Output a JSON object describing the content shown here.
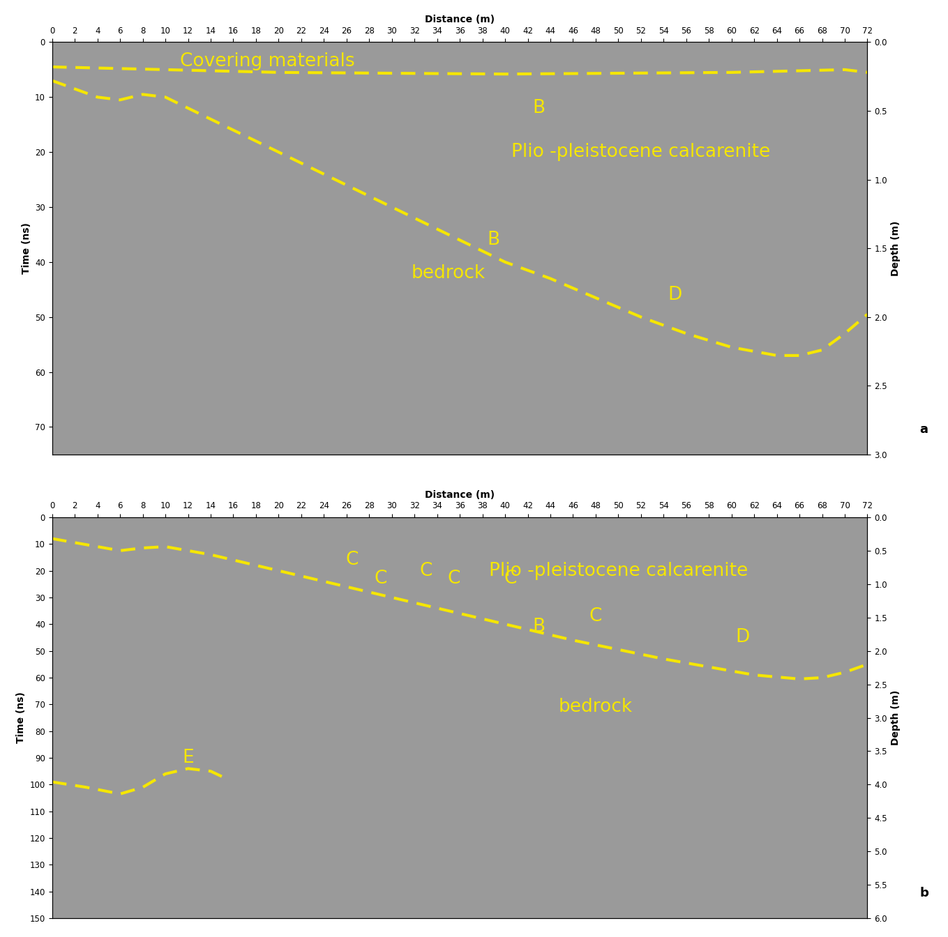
{
  "chart_data": [
    {
      "type": "line",
      "panel_label": "a",
      "x_label": "Distance (m)",
      "y_label": "Time (ns)",
      "y2_label": "Depth (m)",
      "xlim": [
        0,
        72
      ],
      "xticks": [
        0,
        2,
        4,
        6,
        8,
        10,
        12,
        14,
        16,
        18,
        20,
        22,
        24,
        26,
        28,
        30,
        32,
        34,
        36,
        38,
        40,
        42,
        44,
        46,
        48,
        50,
        52,
        54,
        56,
        58,
        60,
        62,
        64,
        66,
        68,
        70,
        72
      ],
      "ylim": [
        75,
        0
      ],
      "yticks": [
        0,
        10,
        20,
        30,
        40,
        50,
        60,
        70
      ],
      "y2lim": [
        3.0,
        0.0
      ],
      "y2ticks": [
        0.0,
        0.5,
        1.0,
        1.5,
        2.0,
        2.5,
        3.0
      ],
      "color": "#9a9a9a",
      "series": [
        {
          "color": "#f5e600",
          "line_style": "dashed",
          "x": [
            0,
            10,
            20,
            40,
            60,
            70,
            72
          ],
          "values": [
            4.5,
            5,
            5.5,
            5.8,
            5.5,
            5,
            5.5
          ]
        },
        {
          "color": "#f5e600",
          "line_style": "dashed",
          "x": [
            0,
            4,
            6,
            8,
            10,
            12,
            16,
            20,
            24,
            28,
            32,
            36,
            40,
            44,
            48,
            52,
            56,
            60,
            64,
            66,
            68,
            70,
            72
          ],
          "values": [
            7,
            10,
            10.5,
            9.5,
            10,
            12,
            16,
            20,
            24,
            28,
            32,
            36,
            40,
            43,
            46.5,
            50,
            53,
            55.5,
            57,
            57,
            56,
            53,
            49.5
          ]
        }
      ],
      "annotations": [
        {
          "text": "Covering materials",
          "x": 19,
          "y": 3.5,
          "color": "#f5e600"
        },
        {
          "text": "B",
          "x": 43,
          "y": 12,
          "color": "#f5e600"
        },
        {
          "text": "Plio -pleistocene calcarenite",
          "x": 52,
          "y": 20,
          "color": "#f5e600"
        },
        {
          "text": "B",
          "x": 39,
          "y": 36,
          "color": "#f5e600"
        },
        {
          "text": "bedrock",
          "x": 35,
          "y": 42,
          "color": "#f5e600"
        },
        {
          "text": "D",
          "x": 55,
          "y": 46,
          "color": "#f5e600"
        }
      ]
    },
    {
      "type": "line",
      "panel_label": "b",
      "x_label": "Distance (m)",
      "y_label": "Time (ns)",
      "y2_label": "Depth (m)",
      "xlim": [
        0,
        72
      ],
      "xticks": [
        0,
        2,
        4,
        6,
        8,
        10,
        12,
        14,
        16,
        18,
        20,
        22,
        24,
        26,
        28,
        30,
        32,
        34,
        36,
        38,
        40,
        42,
        44,
        46,
        48,
        50,
        52,
        54,
        56,
        58,
        60,
        62,
        64,
        66,
        68,
        70,
        72
      ],
      "ylim": [
        150,
        0
      ],
      "yticks": [
        0,
        10,
        20,
        30,
        40,
        50,
        60,
        70,
        80,
        90,
        100,
        110,
        120,
        130,
        140,
        150
      ],
      "y2lim": [
        6.0,
        0.0
      ],
      "y2ticks": [
        0.0,
        0.5,
        1.0,
        1.5,
        2.0,
        2.5,
        3.0,
        3.5,
        4.0,
        4.5,
        5.0,
        5.5,
        6.0
      ],
      "color": "#9a9a9a",
      "series": [
        {
          "color": "#f5e600",
          "line_style": "dashed",
          "x": [
            0,
            4,
            6,
            8,
            10,
            14,
            18,
            22,
            26,
            30,
            34,
            38,
            42,
            46,
            50,
            54,
            58,
            62,
            66,
            68,
            70,
            72
          ],
          "values": [
            8,
            11,
            12.5,
            11.5,
            11,
            14,
            18,
            22,
            26,
            30,
            34,
            38,
            42,
            46,
            49.5,
            53,
            56,
            59,
            60.5,
            60,
            58,
            55
          ]
        },
        {
          "color": "#f5e600",
          "line_style": "dashed",
          "x": [
            0,
            3,
            6,
            8,
            10,
            12,
            14,
            15
          ],
          "values": [
            99,
            101,
            103.5,
            101,
            96,
            94,
            95,
            97
          ]
        }
      ],
      "annotations": [
        {
          "text": "C",
          "x": 26.5,
          "y": 16,
          "color": "#f5e600"
        },
        {
          "text": "C",
          "x": 29,
          "y": 23,
          "color": "#f5e600"
        },
        {
          "text": "C",
          "x": 33,
          "y": 20,
          "color": "#f5e600"
        },
        {
          "text": "C",
          "x": 35.5,
          "y": 23,
          "color": "#f5e600"
        },
        {
          "text": "C",
          "x": 40.5,
          "y": 23,
          "color": "#f5e600"
        },
        {
          "text": "C",
          "x": 48,
          "y": 37,
          "color": "#f5e600"
        },
        {
          "text": "Plio -pleistocene calcarenite",
          "x": 50,
          "y": 20,
          "color": "#f5e600"
        },
        {
          "text": "B",
          "x": 43,
          "y": 41,
          "color": "#f5e600"
        },
        {
          "text": "D",
          "x": 61,
          "y": 45,
          "color": "#f5e600"
        },
        {
          "text": "bedrock",
          "x": 48,
          "y": 71,
          "color": "#f5e600"
        },
        {
          "text": "E",
          "x": 12,
          "y": 90,
          "color": "#f5e600"
        }
      ]
    }
  ]
}
